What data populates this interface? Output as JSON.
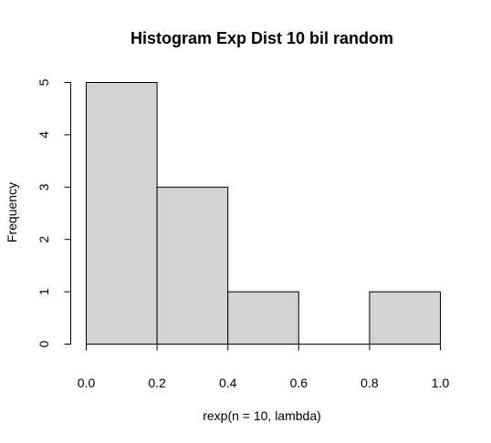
{
  "chart_data": {
    "type": "bar",
    "title": "Histogram Exp Dist 10 bil random",
    "xlabel": "rexp(n = 10, lambda)",
    "ylabel": "Frequency",
    "bins": [
      {
        "start": 0.0,
        "end": 0.2,
        "count": 5
      },
      {
        "start": 0.2,
        "end": 0.4,
        "count": 3
      },
      {
        "start": 0.4,
        "end": 0.6,
        "count": 1
      },
      {
        "start": 0.6,
        "end": 0.8,
        "count": 0
      },
      {
        "start": 0.8,
        "end": 1.0,
        "count": 1
      }
    ],
    "xlim": [
      0,
      1
    ],
    "ylim": [
      0,
      5
    ],
    "xticks": [
      "0.0",
      "0.2",
      "0.4",
      "0.6",
      "0.8",
      "1.0"
    ],
    "yticks": [
      "0",
      "1",
      "2",
      "3",
      "4",
      "5"
    ],
    "bar_color": "#d3d3d3",
    "grid": false
  }
}
